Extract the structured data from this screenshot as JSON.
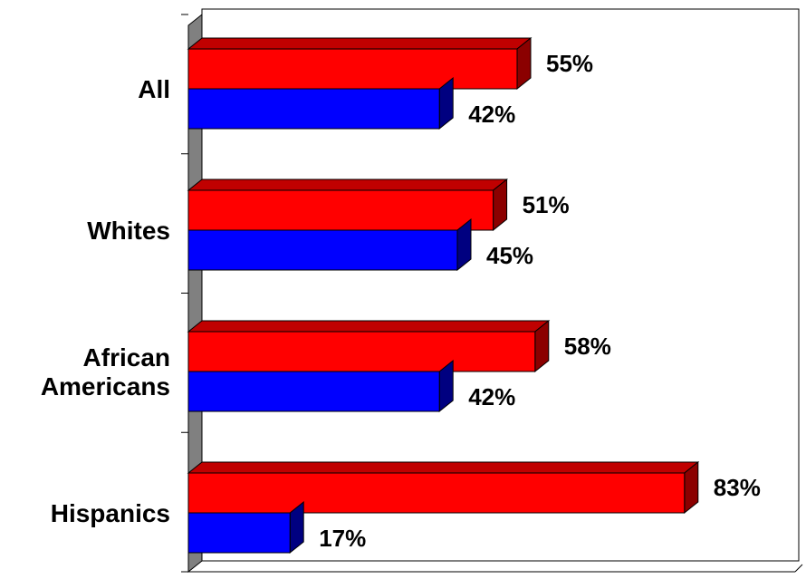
{
  "chart_data": {
    "type": "bar",
    "orientation": "horizontal",
    "style": "3d",
    "categories": [
      [
        "All"
      ],
      [
        "Whites"
      ],
      [
        "African",
        "Americans"
      ],
      [
        "Hispanics"
      ]
    ],
    "series": [
      {
        "color": "#ff0000",
        "side_color": "#8b0000",
        "top_color": "#c00000",
        "values": [
          55,
          51,
          58,
          83
        ],
        "labels": [
          "55%",
          "51%",
          "58%",
          "83%"
        ]
      },
      {
        "color": "#0000ff",
        "side_color": "#000080",
        "top_color": "#0000c0",
        "values": [
          42,
          45,
          42,
          17
        ],
        "labels": [
          "42%",
          "45%",
          "42%",
          "17%"
        ]
      }
    ],
    "xlim": [
      0,
      100
    ],
    "grid": false,
    "legend": "none",
    "wall_color": "#808080"
  }
}
